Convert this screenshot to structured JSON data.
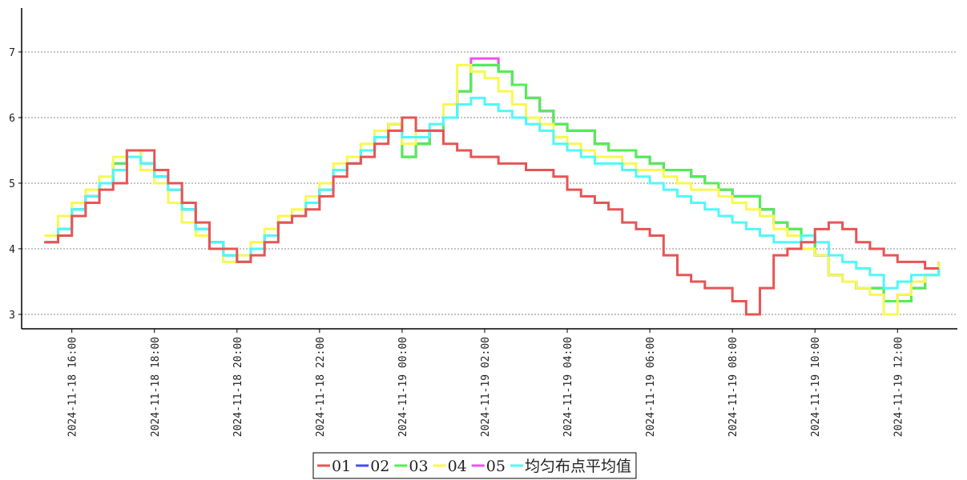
{
  "chart_data": {
    "type": "line",
    "step": "post",
    "x": [
      "2024-11-18 15:20",
      "2024-11-18 15:40",
      "2024-11-18 16:00",
      "2024-11-18 16:20",
      "2024-11-18 16:40",
      "2024-11-18 17:00",
      "2024-11-18 17:20",
      "2024-11-18 17:40",
      "2024-11-18 18:00",
      "2024-11-18 18:20",
      "2024-11-18 18:40",
      "2024-11-18 19:00",
      "2024-11-18 19:20",
      "2024-11-18 19:40",
      "2024-11-18 20:00",
      "2024-11-18 20:20",
      "2024-11-18 20:40",
      "2024-11-18 21:00",
      "2024-11-18 21:20",
      "2024-11-18 21:40",
      "2024-11-18 22:00",
      "2024-11-18 22:20",
      "2024-11-18 22:40",
      "2024-11-18 23:00",
      "2024-11-18 23:20",
      "2024-11-18 23:40",
      "2024-11-19 00:00",
      "2024-11-19 00:20",
      "2024-11-19 00:40",
      "2024-11-19 01:00",
      "2024-11-19 01:20",
      "2024-11-19 01:40",
      "2024-11-19 02:00",
      "2024-11-19 02:20",
      "2024-11-19 02:40",
      "2024-11-19 03:00",
      "2024-11-19 03:20",
      "2024-11-19 03:40",
      "2024-11-19 04:00",
      "2024-11-19 04:20",
      "2024-11-19 04:40",
      "2024-11-19 05:00",
      "2024-11-19 05:20",
      "2024-11-19 05:40",
      "2024-11-19 06:00",
      "2024-11-19 06:20",
      "2024-11-19 06:40",
      "2024-11-19 07:00",
      "2024-11-19 07:20",
      "2024-11-19 07:40",
      "2024-11-19 08:00",
      "2024-11-19 08:20",
      "2024-11-19 08:40",
      "2024-11-19 09:00",
      "2024-11-19 09:20",
      "2024-11-19 09:40",
      "2024-11-19 10:00",
      "2024-11-19 10:20",
      "2024-11-19 10:40",
      "2024-11-19 11:00",
      "2024-11-19 11:20",
      "2024-11-19 11:40",
      "2024-11-19 12:00",
      "2024-11-19 12:20",
      "2024-11-19 12:40",
      "2024-11-19 13:00"
    ],
    "series": [
      {
        "name": "01",
        "color": "#e85454",
        "values": [
          4.1,
          4.2,
          4.5,
          4.7,
          4.9,
          5.0,
          5.5,
          5.5,
          5.2,
          5.0,
          4.7,
          4.4,
          4.0,
          4.0,
          3.8,
          3.9,
          4.1,
          4.4,
          4.5,
          4.6,
          4.8,
          5.1,
          5.3,
          5.4,
          5.6,
          5.8,
          6.0,
          5.8,
          5.8,
          5.6,
          5.5,
          5.4,
          5.4,
          5.3,
          5.3,
          5.2,
          5.2,
          5.1,
          4.9,
          4.8,
          4.7,
          4.6,
          4.4,
          4.3,
          4.2,
          3.9,
          3.6,
          3.5,
          3.4,
          3.4,
          3.2,
          3.0,
          3.4,
          3.9,
          4.0,
          4.1,
          4.3,
          4.4,
          4.3,
          4.1,
          4.0,
          3.9,
          3.8,
          3.8,
          3.7,
          3.7
        ]
      },
      {
        "name": "02",
        "color": "#4b4bf0",
        "values": [
          4.1,
          4.3,
          4.6,
          4.8,
          5.0,
          5.3,
          5.5,
          5.3,
          5.1,
          4.9,
          4.6,
          4.3,
          4.1,
          3.9,
          3.8,
          4.0,
          4.2,
          4.4,
          4.5,
          4.7,
          4.9,
          5.2,
          5.3,
          5.5,
          5.7,
          5.9,
          5.4,
          5.6,
          5.8,
          6.0,
          6.4,
          6.8,
          6.8,
          6.7,
          6.5,
          6.3,
          6.1,
          5.9,
          5.8,
          5.8,
          5.6,
          5.5,
          5.5,
          5.4,
          5.3,
          5.2,
          5.2,
          5.1,
          5.0,
          4.9,
          4.8,
          4.8,
          4.6,
          4.4,
          4.3,
          4.2,
          3.9,
          3.6,
          3.5,
          3.4,
          3.4,
          3.2,
          3.2,
          3.4,
          3.6,
          3.8
        ]
      },
      {
        "name": "05",
        "color": "#f050f0",
        "values": [
          4.1,
          4.3,
          4.6,
          4.8,
          5.0,
          5.3,
          5.5,
          5.3,
          5.1,
          4.9,
          4.6,
          4.3,
          4.1,
          3.9,
          3.8,
          4.0,
          4.2,
          4.4,
          4.5,
          4.7,
          4.9,
          5.2,
          5.3,
          5.5,
          5.7,
          5.9,
          5.4,
          5.6,
          5.8,
          6.0,
          6.4,
          6.9,
          6.9,
          6.7,
          6.5,
          6.3,
          6.1,
          5.9,
          5.8,
          5.8,
          5.6,
          5.5,
          5.5,
          5.4,
          5.3,
          5.2,
          5.2,
          5.1,
          5.0,
          4.9,
          4.8,
          4.8,
          4.6,
          4.4,
          4.3,
          4.2,
          3.9,
          3.6,
          3.5,
          3.4,
          3.4,
          3.2,
          3.3,
          3.4,
          3.6,
          3.8
        ]
      },
      {
        "name": "03",
        "color": "#50f050",
        "values": [
          4.1,
          4.3,
          4.6,
          4.8,
          5.0,
          5.3,
          5.5,
          5.3,
          5.1,
          4.9,
          4.6,
          4.3,
          4.1,
          3.9,
          3.8,
          4.0,
          4.2,
          4.4,
          4.5,
          4.7,
          4.9,
          5.2,
          5.3,
          5.5,
          5.7,
          5.9,
          5.4,
          5.6,
          5.8,
          6.0,
          6.4,
          6.8,
          6.8,
          6.7,
          6.5,
          6.3,
          6.1,
          5.9,
          5.8,
          5.8,
          5.6,
          5.5,
          5.5,
          5.4,
          5.3,
          5.2,
          5.2,
          5.1,
          5.0,
          4.9,
          4.8,
          4.8,
          4.6,
          4.4,
          4.3,
          4.2,
          3.9,
          3.6,
          3.5,
          3.4,
          3.4,
          3.2,
          3.2,
          3.4,
          3.6,
          3.8
        ]
      },
      {
        "name": "04",
        "color": "#f8f850",
        "values": [
          4.2,
          4.5,
          4.7,
          4.9,
          5.1,
          5.4,
          5.5,
          5.2,
          5.0,
          4.7,
          4.4,
          4.2,
          4.0,
          3.8,
          3.9,
          4.1,
          4.3,
          4.5,
          4.6,
          4.8,
          5.0,
          5.3,
          5.4,
          5.6,
          5.8,
          5.9,
          5.6,
          5.8,
          5.9,
          6.2,
          6.8,
          6.7,
          6.6,
          6.4,
          6.2,
          6.0,
          5.9,
          5.7,
          5.6,
          5.5,
          5.4,
          5.4,
          5.3,
          5.2,
          5.2,
          5.1,
          5.0,
          4.9,
          4.9,
          4.8,
          4.7,
          4.6,
          4.5,
          4.3,
          4.2,
          4.0,
          3.9,
          3.6,
          3.5,
          3.4,
          3.3,
          3.0,
          3.3,
          3.5,
          3.6,
          3.8
        ]
      },
      {
        "name": "均匀布点平均值",
        "color": "#50f8f8",
        "values": [
          4.1,
          4.3,
          4.6,
          4.8,
          5.0,
          5.2,
          5.4,
          5.3,
          5.1,
          4.9,
          4.6,
          4.3,
          4.1,
          3.9,
          3.8,
          4.0,
          4.2,
          4.4,
          4.5,
          4.7,
          4.9,
          5.2,
          5.3,
          5.5,
          5.7,
          5.8,
          5.7,
          5.7,
          5.9,
          6.0,
          6.2,
          6.3,
          6.2,
          6.1,
          6.0,
          5.9,
          5.8,
          5.6,
          5.5,
          5.4,
          5.3,
          5.3,
          5.2,
          5.1,
          5.0,
          4.9,
          4.8,
          4.7,
          4.6,
          4.5,
          4.4,
          4.3,
          4.2,
          4.1,
          4.1,
          4.2,
          4.1,
          3.9,
          3.8,
          3.7,
          3.6,
          3.4,
          3.5,
          3.6,
          3.6,
          3.7
        ]
      }
    ],
    "legend_order": [
      "01",
      "02",
      "03",
      "04",
      "05",
      "均匀布点平均值"
    ],
    "xlim": [
      "2024-11-18 14:47",
      "2024-11-19 13:27"
    ],
    "xticks": [
      "2024-11-18 16:00",
      "2024-11-18 18:00",
      "2024-11-18 20:00",
      "2024-11-18 22:00",
      "2024-11-19 00:00",
      "2024-11-19 02:00",
      "2024-11-19 04:00",
      "2024-11-19 06:00",
      "2024-11-19 08:00",
      "2024-11-19 10:00",
      "2024-11-19 12:00"
    ],
    "ylim": [
      2.78,
      7.67
    ],
    "yticks": [
      3,
      4,
      5,
      6,
      7
    ],
    "grid": true,
    "legend": "bottom"
  }
}
